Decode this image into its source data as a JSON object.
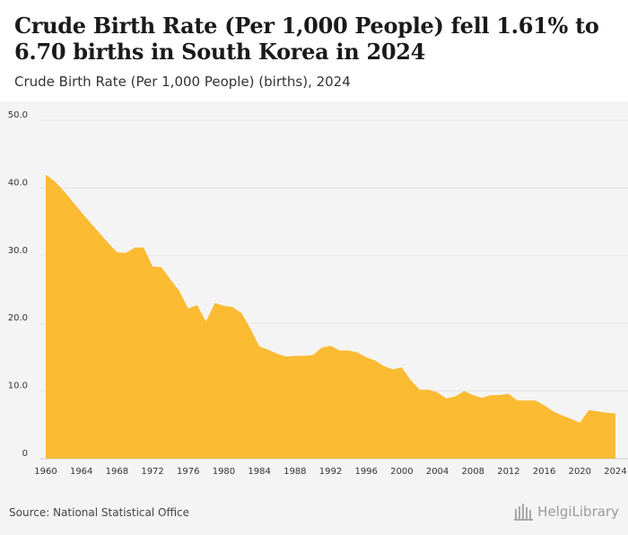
{
  "header": {
    "title": "Crude Birth Rate (Per 1,000 People) fell 1.61% to 6.70 births in South Korea in 2024",
    "subtitle": "Crude Birth Rate (Per 1,000 People) (births), 2024"
  },
  "footer": {
    "source": "Source: National Statistical Office",
    "brand": "HelgiLibrary"
  },
  "colors": {
    "area": "#fbbc33",
    "grid": "#e3e3e3",
    "axis_text": "#333333",
    "background": "#f4f4f4"
  },
  "chart_data": {
    "type": "area",
    "title": "Crude Birth Rate (Per 1,000 People) fell 1.61% to 6.70 births in South Korea in 2024",
    "subtitle": "Crude Birth Rate (Per 1,000 People) (births), 2024",
    "xlabel": "",
    "ylabel": "",
    "x": [
      1960,
      1961,
      1962,
      1963,
      1964,
      1965,
      1966,
      1967,
      1968,
      1969,
      1970,
      1971,
      1972,
      1973,
      1974,
      1975,
      1976,
      1977,
      1978,
      1979,
      1980,
      1981,
      1982,
      1983,
      1984,
      1985,
      1986,
      1987,
      1988,
      1989,
      1990,
      1991,
      1992,
      1993,
      1994,
      1995,
      1996,
      1997,
      1998,
      1999,
      2000,
      2001,
      2002,
      2003,
      2004,
      2005,
      2006,
      2007,
      2008,
      2009,
      2010,
      2011,
      2012,
      2013,
      2014,
      2015,
      2016,
      2017,
      2018,
      2019,
      2020,
      2021,
      2022,
      2023,
      2024
    ],
    "series": [
      {
        "values": [
          42.0,
          41.0,
          39.6,
          38.0,
          36.4,
          34.9,
          33.4,
          31.9,
          30.5,
          30.4,
          31.2,
          31.2,
          28.4,
          28.3,
          26.5,
          24.8,
          22.2,
          22.7,
          20.3,
          23.0,
          22.6,
          22.4,
          21.5,
          19.2,
          16.6,
          16.1,
          15.5,
          15.1,
          15.2,
          15.2,
          15.3,
          16.4,
          16.7,
          16.0,
          16.0,
          15.7,
          15.0,
          14.5,
          13.7,
          13.2,
          13.5,
          11.6,
          10.2,
          10.2,
          9.8,
          8.9,
          9.2,
          10.0,
          9.4,
          9.0,
          9.4,
          9.4,
          9.6,
          8.6,
          8.6,
          8.6,
          7.9,
          7.0,
          6.4,
          5.9,
          5.3,
          7.2,
          7.0,
          6.8,
          6.7
        ]
      }
    ],
    "ylim": [
      0,
      50
    ],
    "yticks": [
      "0",
      "10.0",
      "20.0",
      "30.0",
      "40.0",
      "50.0"
    ],
    "xticks": [
      "1960",
      "1964",
      "1968",
      "1972",
      "1976",
      "1980",
      "1984",
      "1988",
      "1992",
      "1996",
      "2000",
      "2004",
      "2008",
      "2012",
      "2016",
      "2020",
      "2024"
    ],
    "grid": true,
    "legend": "none"
  }
}
